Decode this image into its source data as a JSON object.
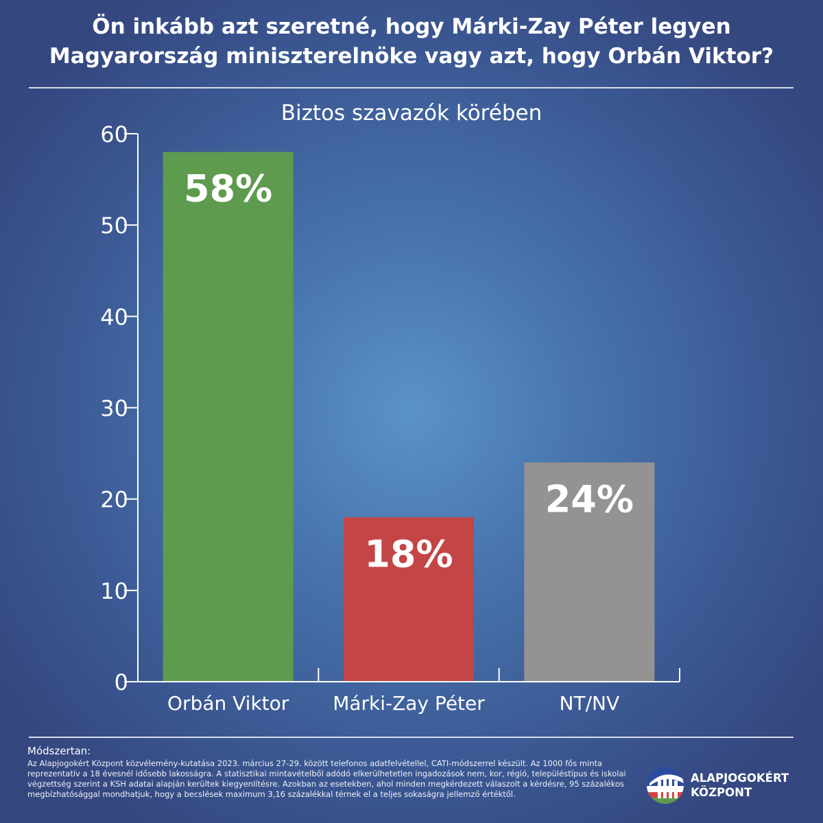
{
  "header": {
    "title_line1": "Ön inkább azt szeretné, hogy Márki-Zay Péter legyen",
    "title_line2": "Magyarország miniszterelnöke vagy azt, hogy Orbán Viktor?"
  },
  "chart_data": {
    "type": "bar",
    "subtitle": "Biztos szavazók körében",
    "categories": [
      "Orbán Viktor",
      "Márki-Zay Péter",
      "NT/NV"
    ],
    "values": [
      58,
      18,
      24
    ],
    "data_labels": [
      "58%",
      "18%",
      "24%"
    ],
    "colors": [
      "#5e9b4e",
      "#c34545",
      "#959391"
    ],
    "ylim": [
      0,
      60
    ],
    "yticks": [
      0,
      10,
      20,
      30,
      40,
      50,
      60
    ],
    "grid": false,
    "legend": "none"
  },
  "methodology": {
    "heading": "Módszertan:",
    "text": "Az Alapjogokért Központ közvélemény-kutatása 2023. március 27-29. között telefonos adatfelvétellel, CATI-módszerrel készült. Az 1000 fős minta reprezentatív a 18 évesnél idősebb lakosságra. A statisztikai mintavételből adódó elkerülhetetlen ingadozások nem, kor, régió, településtípus és iskolai végzettség szerint a KSH adatai alapján kerültek kiegyenlítésre. Azokban az esetekben, ahol minden megkérdezett válaszolt a kérdésre, 95 százalékos megbízhatósággal mondhatjuk, hogy a becslések maximum 3,16 százalékkal térnek el a teljes sokaságra jellemző értéktől."
  },
  "logo": {
    "line1": "ALAPJOGOKÉRT",
    "line2": "KÖZPONT"
  }
}
